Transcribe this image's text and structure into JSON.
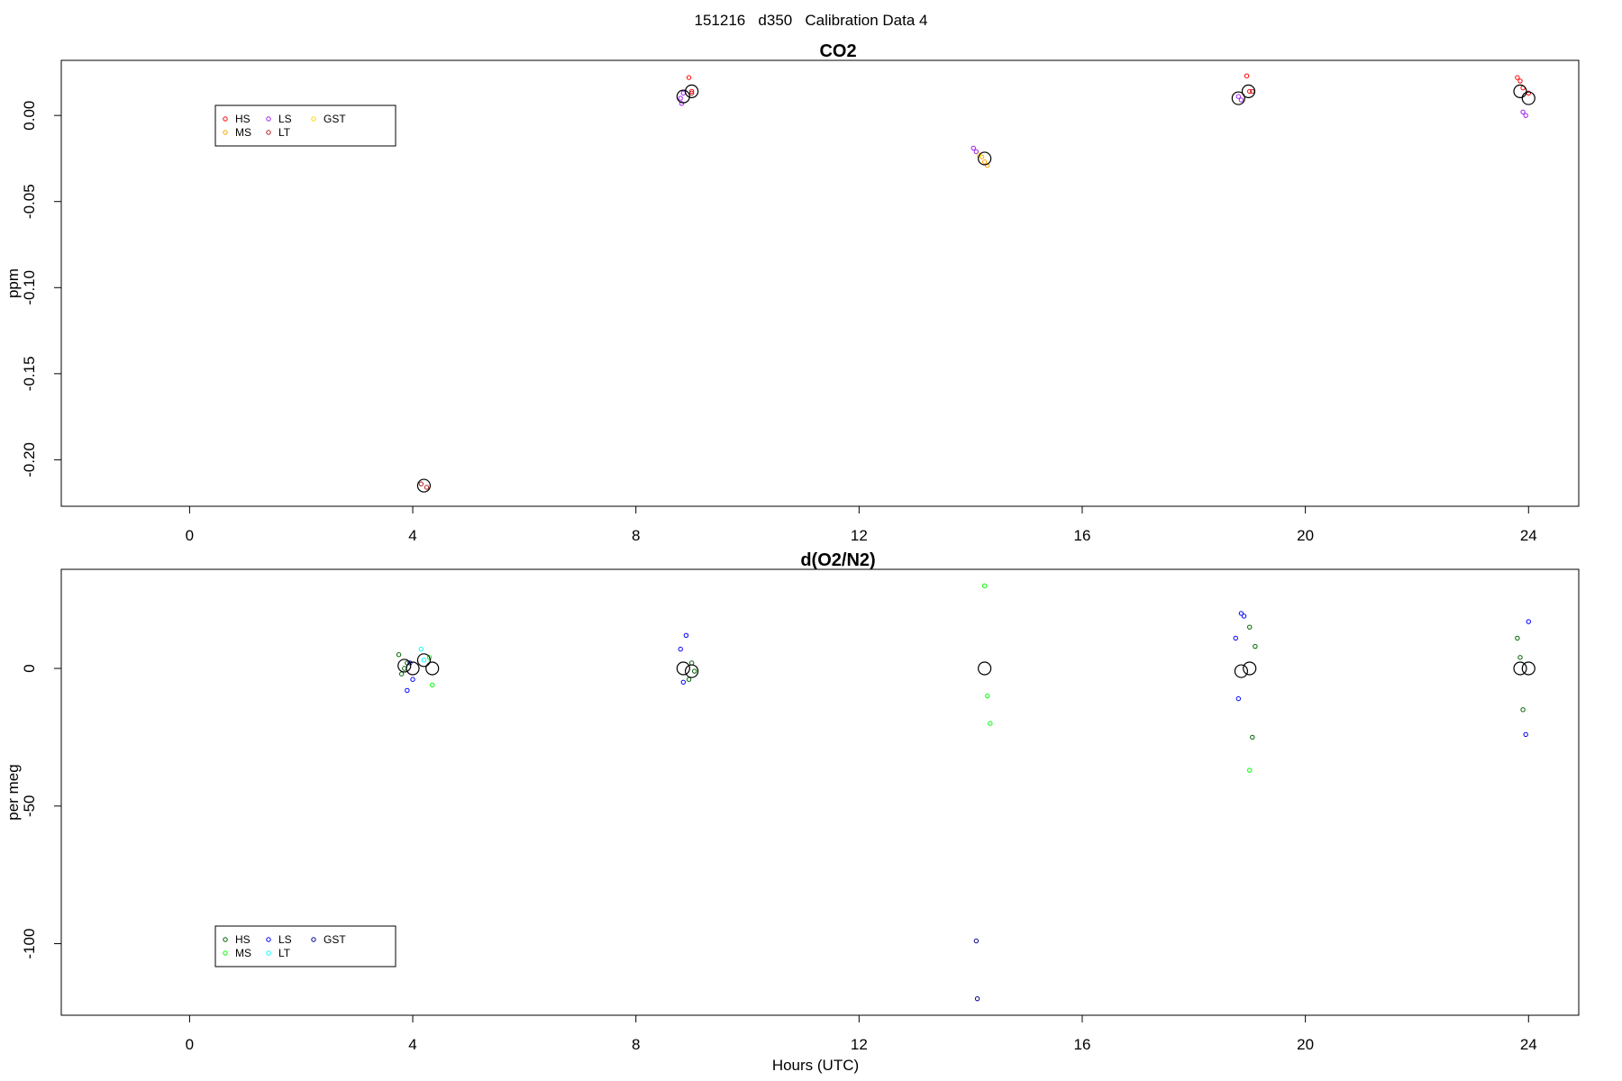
{
  "suptitle": "151216   d350   Calibration Data 4",
  "x_label": "Hours (UTC)",
  "chart_data": [
    {
      "type": "scatter",
      "title": "CO2",
      "ylabel": "ppm",
      "xlim": [
        -2.3,
        24.9
      ],
      "ylim": [
        -0.227,
        0.032
      ],
      "xticks": [
        0,
        4,
        8,
        12,
        16,
        20,
        24
      ],
      "xtick_labels": [
        "0",
        "4",
        "8",
        "12",
        "16",
        "20",
        "24"
      ],
      "yticks": [
        0.0,
        -0.05,
        -0.1,
        -0.15,
        -0.2
      ],
      "ytick_labels": [
        "0.00",
        "-0.05",
        "-0.10",
        "-0.15",
        "-0.20"
      ],
      "legend": {
        "position": "top-left",
        "entries": [
          {
            "label": "HS",
            "color": "#ff0000"
          },
          {
            "label": "MS",
            "color": "#ffa500"
          },
          {
            "label": "LS",
            "color": "#a020f0"
          },
          {
            "label": "LT",
            "color": "#b22222"
          },
          {
            "label": "GST",
            "color": "#ffd700"
          }
        ]
      },
      "series": [
        {
          "name": "HS",
          "color": "#ff0000",
          "x": [
            8.95,
            9.0,
            18.95,
            19.0,
            23.8,
            23.85,
            23.9,
            24.0
          ],
          "y": [
            0.022,
            0.014,
            0.023,
            0.014,
            0.022,
            0.02,
            0.016,
            0.013
          ]
        },
        {
          "name": "MS",
          "color": "#ffa500",
          "x": [
            14.2,
            14.25,
            14.3
          ],
          "y": [
            -0.024,
            -0.027,
            -0.029
          ]
        },
        {
          "name": "LS",
          "color": "#a020f0",
          "x": [
            8.8,
            8.82,
            8.85,
            14.05,
            14.1,
            18.8,
            18.85,
            23.9,
            23.95
          ],
          "y": [
            0.01,
            0.007,
            0.013,
            -0.019,
            -0.021,
            0.011,
            0.009,
            0.002,
            0.0
          ]
        },
        {
          "name": "LT",
          "color": "#b22222",
          "x": [
            4.15,
            4.25,
            9.0,
            19.05
          ],
          "y": [
            -0.214,
            -0.216,
            0.013,
            0.014
          ]
        },
        {
          "name": "GST",
          "color": "#ffd700",
          "x": [
            14.15
          ],
          "y": [
            -0.023
          ]
        },
        {
          "name": "",
          "color": "#000000",
          "marker": "large-circle",
          "x": [
            4.2,
            8.85,
            9.0,
            14.25,
            18.8,
            18.98,
            23.85,
            24.0
          ],
          "y": [
            -0.215,
            0.011,
            0.014,
            -0.025,
            0.01,
            0.014,
            0.014,
            0.01
          ]
        }
      ]
    },
    {
      "type": "scatter",
      "title": "d(O2/N2)",
      "ylabel": "per meg",
      "xlim": [
        -2.3,
        24.9
      ],
      "ylim": [
        -126,
        36
      ],
      "xticks": [
        0,
        4,
        8,
        12,
        16,
        20,
        24
      ],
      "xtick_labels": [
        "0",
        "4",
        "8",
        "12",
        "16",
        "20",
        "24"
      ],
      "yticks": [
        0,
        -50,
        -100
      ],
      "ytick_labels": [
        "0",
        "-50",
        "-100"
      ],
      "legend": {
        "position": "bottom-left",
        "entries": [
          {
            "label": "HS",
            "color": "#006400"
          },
          {
            "label": "MS",
            "color": "#00ff00"
          },
          {
            "label": "LS",
            "color": "#0000ff"
          },
          {
            "label": "LT",
            "color": "#00ffff"
          },
          {
            "label": "GST",
            "color": "#00008b"
          }
        ]
      },
      "series": [
        {
          "name": "HS",
          "color": "#006400",
          "x": [
            3.75,
            3.8,
            3.85,
            3.9,
            9.0,
            9.05,
            8.95,
            19.0,
            19.05,
            19.1,
            23.8,
            23.85,
            23.9
          ],
          "y": [
            5,
            -2,
            0,
            2,
            2,
            -1,
            -4,
            15,
            -25,
            8,
            11,
            4,
            -15
          ]
        },
        {
          "name": "MS",
          "color": "#00ff00",
          "x": [
            4.3,
            4.35,
            14.25,
            14.3,
            14.35,
            19.0
          ],
          "y": [
            4,
            -6,
            30,
            -10,
            -20,
            -37
          ]
        },
        {
          "name": "LS",
          "color": "#0000ff",
          "x": [
            3.9,
            3.95,
            4.0,
            8.8,
            8.85,
            8.9,
            18.75,
            18.8,
            18.85,
            18.9,
            23.95,
            24.0
          ],
          "y": [
            -8,
            2,
            -4,
            7,
            -5,
            12,
            11,
            -11,
            20,
            19,
            -24,
            17
          ]
        },
        {
          "name": "LT",
          "color": "#00ffff",
          "x": [
            4.15,
            4.2
          ],
          "y": [
            7,
            3
          ]
        },
        {
          "name": "GST",
          "color": "#00008b",
          "x": [
            14.1,
            14.12
          ],
          "y": [
            -99,
            -120
          ]
        },
        {
          "name": "",
          "color": "#000000",
          "marker": "large-circle",
          "x": [
            3.85,
            4.0,
            4.2,
            4.35,
            8.85,
            9.0,
            14.25,
            18.85,
            19.0,
            23.85,
            24.0
          ],
          "y": [
            1,
            0,
            3,
            0,
            0,
            -1,
            0,
            -1,
            0,
            0,
            0
          ]
        }
      ]
    }
  ]
}
